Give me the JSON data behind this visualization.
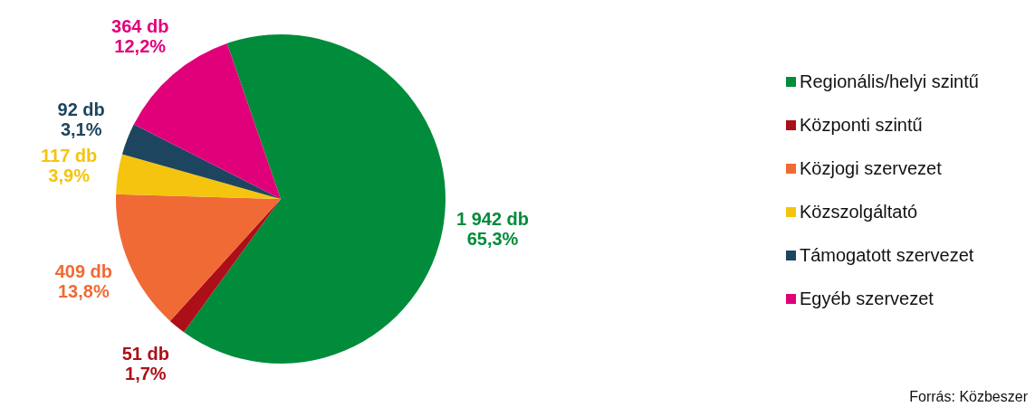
{
  "chart_data": {
    "type": "pie",
    "categories": [
      "Regionális/helyi szintű",
      "Központi szintű",
      "Közjogi szervezet",
      "Közszolgáltató",
      "Támogatott szervezet",
      "Egyéb szervezet"
    ],
    "values": [
      1942,
      51,
      409,
      117,
      92,
      364
    ],
    "colors": [
      "#008c3a",
      "#ad0f18",
      "#f06a35",
      "#f5c40e",
      "#1d4560",
      "#e0007a"
    ],
    "value_labels": [
      "1 942 db\n65,3%",
      "51 db\n1,7%",
      "409 db\n13,8%",
      "117 db\n3,9%",
      "92 db\n3,1%",
      "364 db\n12,2%"
    ],
    "legend": "right",
    "annotations": [
      "Forrás: Közbeszer"
    ]
  }
}
